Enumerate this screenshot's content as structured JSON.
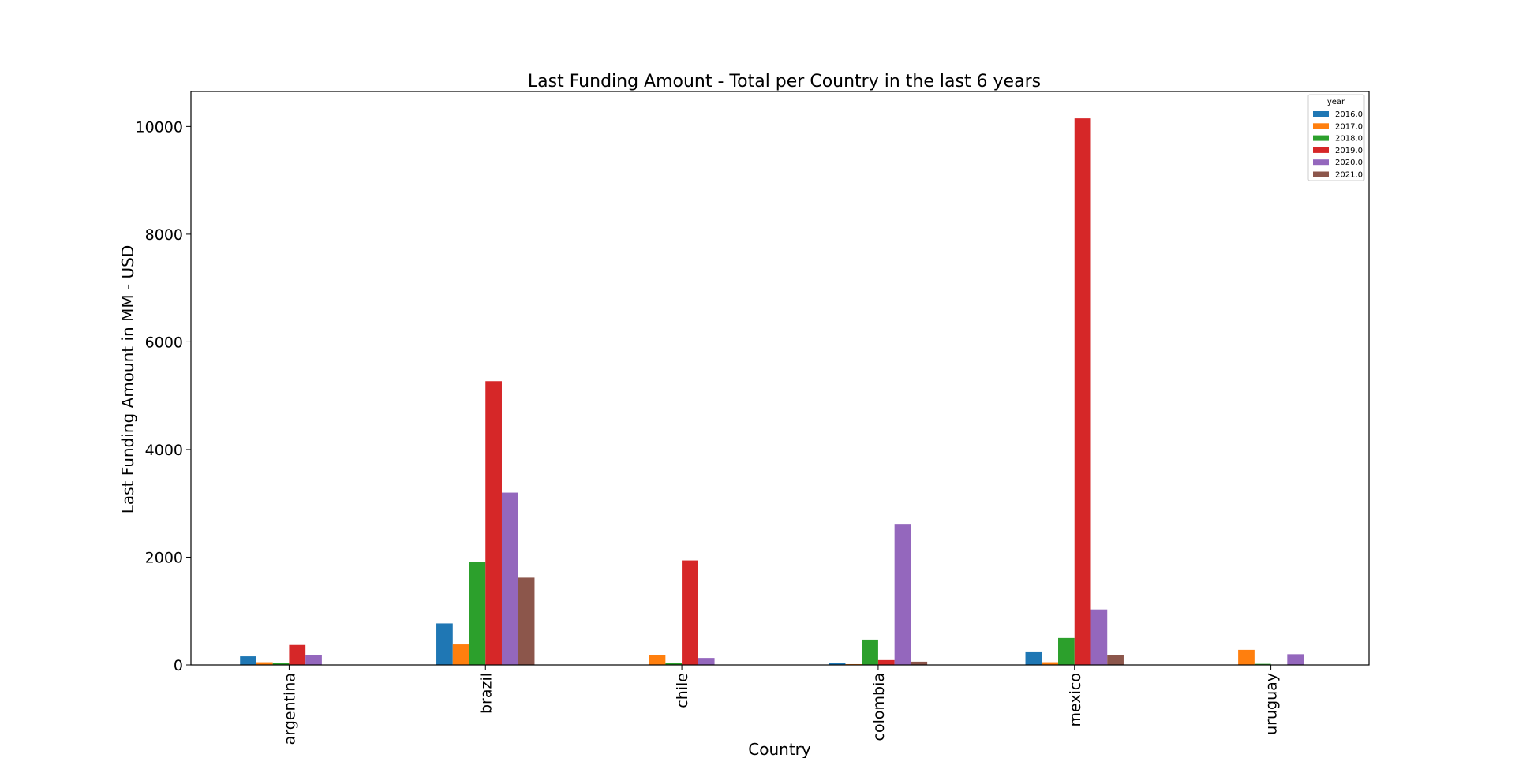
{
  "chart_data": {
    "type": "bar",
    "title": "Last Funding Amount - Total  per Country in the last 6 years",
    "xlabel": "Country",
    "ylabel": "Last Funding Amount in MM - USD",
    "categories": [
      "argentina",
      "brazil",
      "chile",
      "colombia",
      "mexico",
      "uruguay"
    ],
    "ylim": [
      0,
      10650
    ],
    "yticks": [
      0,
      2000,
      4000,
      6000,
      8000,
      10000
    ],
    "grid": false,
    "legend": {
      "title": "year",
      "position": "top-right"
    },
    "series": [
      {
        "name": "2016.0",
        "color": "#1f77b4",
        "values": [
          160,
          770,
          0,
          40,
          250,
          0
        ]
      },
      {
        "name": "2017.0",
        "color": "#ff7f0e",
        "values": [
          50,
          380,
          180,
          15,
          50,
          280
        ]
      },
      {
        "name": "2018.0",
        "color": "#2ca02c",
        "values": [
          40,
          1910,
          30,
          470,
          500,
          20
        ]
      },
      {
        "name": "2019.0",
        "color": "#d62728",
        "values": [
          370,
          5270,
          1940,
          90,
          10150,
          0
        ]
      },
      {
        "name": "2020.0",
        "color": "#9467bd",
        "values": [
          190,
          3200,
          130,
          2620,
          1030,
          200
        ]
      },
      {
        "name": "2021.0",
        "color": "#8c564b",
        "values": [
          0,
          1620,
          0,
          60,
          180,
          0
        ]
      }
    ]
  }
}
